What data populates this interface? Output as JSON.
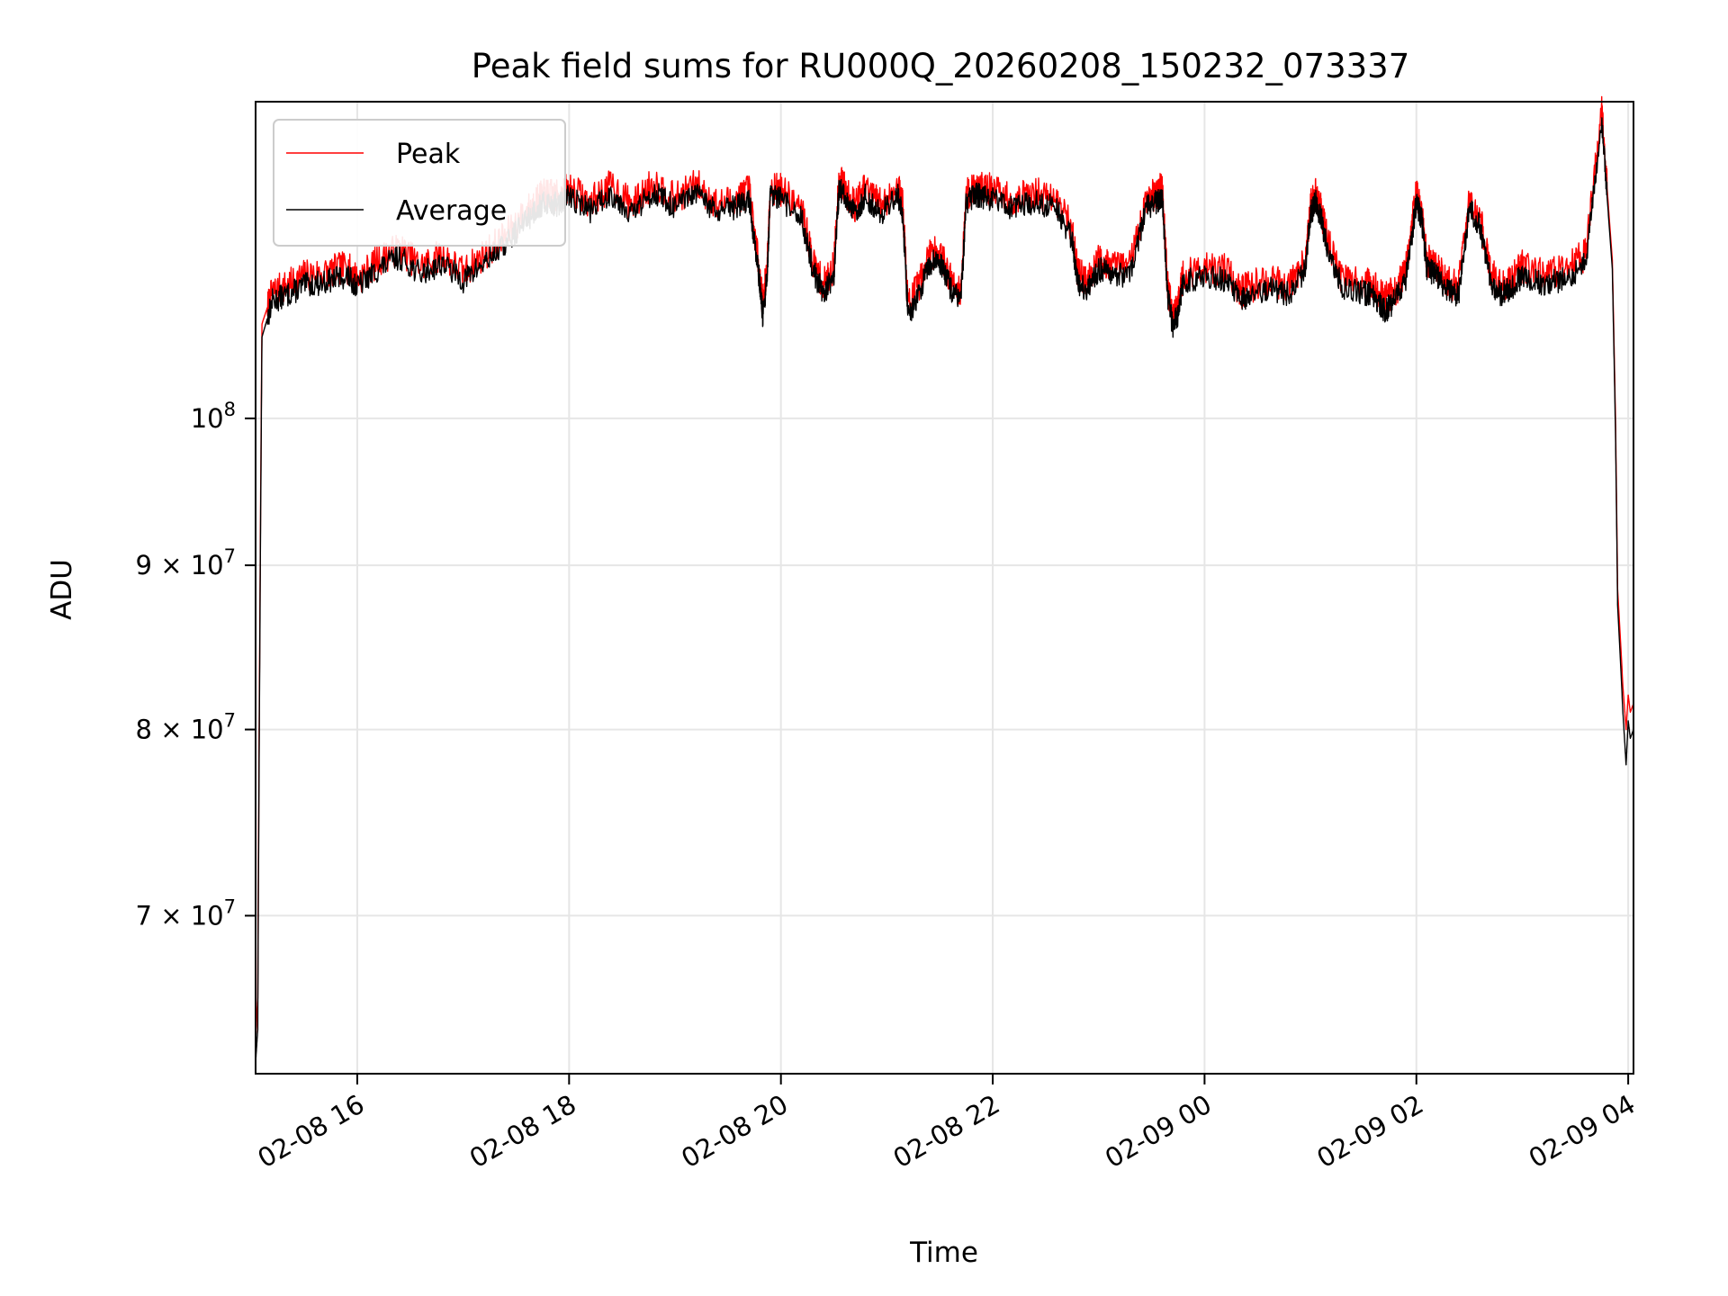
{
  "chart_data": {
    "type": "line",
    "title": "Peak field sums for RU000Q_20260208_150232_073337",
    "xlabel": "Time",
    "ylabel": "ADU",
    "yscale": "log",
    "xlim_hours": [
      15.04,
      28.05
    ],
    "ylim": [
      62500000,
      125500000
    ],
    "grid": true,
    "legend_position": "upper-left",
    "x_ticks": [
      {
        "value": 16,
        "label": "02-08 16"
      },
      {
        "value": 18,
        "label": "02-08 18"
      },
      {
        "value": 20,
        "label": "02-08 20"
      },
      {
        "value": 22,
        "label": "02-08 22"
      },
      {
        "value": 24,
        "label": "02-09 00"
      },
      {
        "value": 26,
        "label": "02-09 02"
      },
      {
        "value": 28,
        "label": "02-09 04"
      }
    ],
    "y_ticks": [
      {
        "value": 70000000,
        "label": "7 × 10",
        "exp": "7"
      },
      {
        "value": 80000000,
        "label": "8 × 10",
        "exp": "7"
      },
      {
        "value": 90000000,
        "label": "9 × 10",
        "exp": "7"
      },
      {
        "value": 100000000,
        "label": "10",
        "exp": "8"
      }
    ],
    "colors": {
      "peak": "#ff0000",
      "average": "#000000",
      "grid": "#e6e6e6"
    },
    "series": [
      {
        "name": "Peak",
        "hours": [
          15.04,
          15.06,
          15.1,
          15.2,
          15.35,
          15.5,
          15.7,
          15.9,
          16.0,
          16.2,
          16.4,
          16.6,
          16.8,
          17.0,
          17.2,
          17.4,
          17.6,
          17.7,
          17.8,
          17.9,
          18.0,
          18.2,
          18.4,
          18.6,
          18.8,
          19.0,
          19.2,
          19.4,
          19.6,
          19.7,
          19.8,
          19.83,
          19.87,
          19.9,
          20.0,
          20.2,
          20.3,
          20.4,
          20.5,
          20.55,
          20.62,
          20.7,
          20.8,
          20.95,
          21.1,
          21.15,
          21.2,
          21.3,
          21.4,
          21.5,
          21.6,
          21.7,
          21.75,
          21.85,
          21.9,
          22.0,
          22.2,
          22.4,
          22.6,
          22.75,
          22.8,
          22.9,
          23.0,
          23.1,
          23.3,
          23.45,
          23.55,
          23.6,
          23.65,
          23.7,
          23.75,
          23.8,
          24.0,
          24.2,
          24.35,
          24.4,
          24.6,
          24.8,
          24.95,
          25.0,
          25.05,
          25.1,
          25.15,
          25.3,
          25.5,
          25.6,
          25.7,
          25.8,
          25.9,
          26.0,
          26.05,
          26.1,
          26.2,
          26.3,
          26.4,
          26.5,
          26.6,
          26.7,
          26.8,
          26.9,
          27.0,
          27.2,
          27.4,
          27.6,
          27.75,
          27.8,
          27.85,
          27.88,
          27.9,
          27.95,
          27.98,
          28.0,
          28.02,
          28.05
        ],
        "values": [
          64000000,
          66000000,
          107000000,
          109500000,
          110000000,
          110800000,
          111000000,
          111500000,
          110500000,
          112000000,
          113000000,
          111500000,
          112500000,
          111000000,
          112500000,
          114000000,
          116000000,
          117000000,
          117500000,
          117200000,
          118000000,
          116800000,
          118200000,
          116500000,
          118500000,
          117000000,
          118300000,
          116500000,
          117200000,
          117800000,
          110800000,
          108500000,
          111500000,
          118000000,
          117800000,
          116000000,
          112000000,
          110000000,
          111500000,
          119000000,
          117500000,
          116500000,
          118000000,
          116500000,
          118200000,
          116500000,
          108500000,
          110000000,
          112500000,
          112800000,
          110500000,
          109500000,
          117500000,
          118200000,
          118000000,
          117800000,
          117000000,
          117500000,
          117000000,
          114500000,
          111000000,
          110500000,
          112000000,
          111800000,
          111500000,
          117000000,
          117500000,
          118000000,
          110000000,
          107500000,
          108500000,
          111000000,
          111500000,
          111200000,
          109500000,
          109800000,
          110500000,
          110000000,
          112000000,
          116500000,
          117500000,
          116200000,
          114000000,
          110500000,
          110200000,
          110000000,
          109000000,
          109500000,
          111200000,
          117500000,
          116000000,
          112000000,
          111500000,
          110200000,
          110000000,
          117000000,
          115500000,
          111000000,
          110000000,
          110500000,
          111500000,
          110800000,
          111200000,
          112500000,
          124500000,
          118000000,
          112000000,
          100000000,
          88500000,
          82500000,
          80000000,
          82000000,
          81000000,
          81500000
        ]
      },
      {
        "name": "Average",
        "hours": [
          15.04,
          15.06,
          15.1,
          15.2,
          15.35,
          15.5,
          15.7,
          15.9,
          16.0,
          16.2,
          16.4,
          16.6,
          16.8,
          17.0,
          17.2,
          17.4,
          17.6,
          17.7,
          17.8,
          17.9,
          18.0,
          18.2,
          18.4,
          18.6,
          18.8,
          19.0,
          19.2,
          19.4,
          19.6,
          19.7,
          19.8,
          19.83,
          19.87,
          19.9,
          20.0,
          20.2,
          20.3,
          20.4,
          20.5,
          20.55,
          20.62,
          20.7,
          20.8,
          20.95,
          21.1,
          21.15,
          21.2,
          21.3,
          21.4,
          21.5,
          21.6,
          21.7,
          21.75,
          21.85,
          21.9,
          22.0,
          22.2,
          22.4,
          22.6,
          22.75,
          22.8,
          22.9,
          23.0,
          23.1,
          23.3,
          23.45,
          23.55,
          23.6,
          23.65,
          23.7,
          23.75,
          23.8,
          24.0,
          24.2,
          24.35,
          24.4,
          24.6,
          24.8,
          24.95,
          25.0,
          25.05,
          25.1,
          25.15,
          25.3,
          25.5,
          25.6,
          25.7,
          25.8,
          25.9,
          26.0,
          26.05,
          26.1,
          26.2,
          26.3,
          26.4,
          26.5,
          26.6,
          26.7,
          26.8,
          26.9,
          27.0,
          27.2,
          27.4,
          27.6,
          27.75,
          27.8,
          27.85,
          27.88,
          27.9,
          27.95,
          27.98,
          28.0,
          28.02,
          28.05
        ],
        "values": [
          63000000,
          64500000,
          106000000,
          108800000,
          109300000,
          110000000,
          110300000,
          110800000,
          109900000,
          111300000,
          112300000,
          110900000,
          111800000,
          110400000,
          111800000,
          113300000,
          115300000,
          116300000,
          116800000,
          116500000,
          117300000,
          116100000,
          117500000,
          115800000,
          117700000,
          116300000,
          117500000,
          115800000,
          116500000,
          117000000,
          110200000,
          107500000,
          110800000,
          117300000,
          117000000,
          115300000,
          111300000,
          109300000,
          110800000,
          118000000,
          116800000,
          115800000,
          117300000,
          115800000,
          117500000,
          115800000,
          107700000,
          109200000,
          111800000,
          112000000,
          109800000,
          108700000,
          116800000,
          117400000,
          117300000,
          117000000,
          116300000,
          116800000,
          116300000,
          113800000,
          110200000,
          109700000,
          111300000,
          111000000,
          110800000,
          116300000,
          116800000,
          117300000,
          109200000,
          106800000,
          107800000,
          110300000,
          110800000,
          110400000,
          108800000,
          109100000,
          109800000,
          109300000,
          111300000,
          115800000,
          116800000,
          115500000,
          113300000,
          109800000,
          109400000,
          109200000,
          108000000,
          108800000,
          110500000,
          116800000,
          115300000,
          111300000,
          110800000,
          109500000,
          109300000,
          116300000,
          114800000,
          110300000,
          109300000,
          109800000,
          110800000,
          110100000,
          110500000,
          111800000,
          123800000,
          117300000,
          111300000,
          99000000,
          87500000,
          81000000,
          78000000,
          80500000,
          79500000,
          80000000
        ]
      }
    ]
  }
}
